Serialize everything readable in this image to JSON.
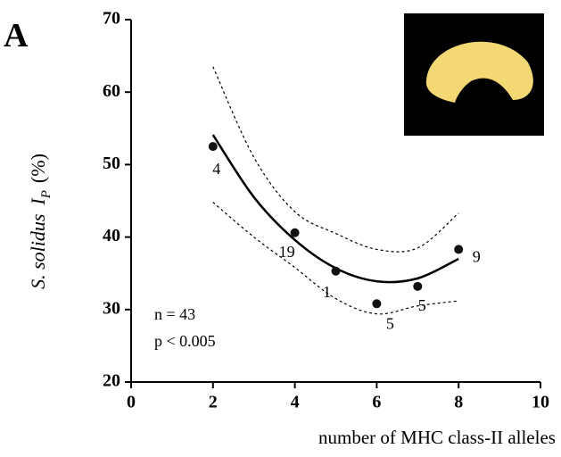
{
  "panel": "A",
  "chart_data": {
    "type": "scatter",
    "xlabel": "number of MHC class-II alleles",
    "ylabel": {
      "species": "S. solidus",
      "symbol": "I",
      "subscript": "P",
      "unit": "(%)"
    },
    "xlim": [
      0,
      10
    ],
    "xticks": [
      0,
      2,
      4,
      6,
      8,
      10
    ],
    "ylim": [
      20,
      70
    ],
    "yticks": [
      20,
      30,
      40,
      50,
      60,
      70
    ],
    "x": [
      2,
      4,
      5,
      6,
      7,
      8
    ],
    "values": [
      52.5,
      40.6,
      35.3,
      30.8,
      33.2,
      38.3
    ],
    "n": [
      4,
      19,
      1,
      5,
      5,
      9
    ],
    "color": "#111111",
    "fit": {
      "x": [
        2,
        3,
        4,
        5,
        6,
        7,
        8
      ],
      "values": [
        54.1,
        45.5,
        39.6,
        35.7,
        33.9,
        34.3,
        37.0
      ]
    },
    "upper": {
      "x": [
        2,
        3,
        4,
        5,
        6,
        7,
        8
      ],
      "values": [
        63.5,
        51.0,
        43.5,
        40.5,
        38.3,
        38.5,
        43.3
      ]
    },
    "lower": {
      "x": [
        2,
        3,
        4,
        5,
        6,
        7,
        8
      ],
      "values": [
        44.8,
        40.0,
        35.8,
        31.5,
        29.4,
        30.5,
        31.2
      ]
    },
    "annotations": [
      "n = 43",
      "p < 0.005"
    ]
  }
}
